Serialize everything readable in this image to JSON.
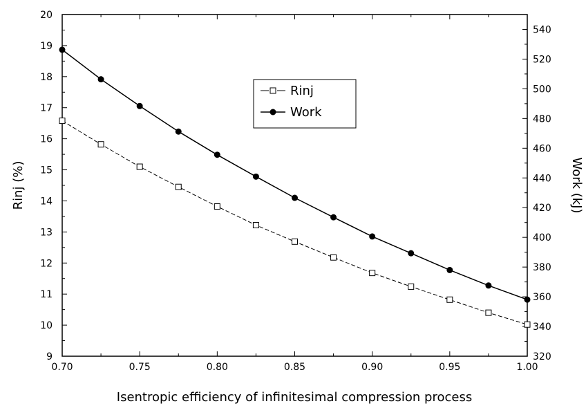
{
  "chart_data": {
    "type": "line",
    "xlabel": "Isentropic efficiency of infinitesimal compression process",
    "ylabel_left": "Rinj (%)",
    "ylabel_right": "Work (kJ)",
    "xlim": [
      0.7,
      1.0
    ],
    "ylim_left": [
      9,
      20
    ],
    "ylim_right": [
      320,
      550
    ],
    "x_ticks": [
      "0.70",
      "0.75",
      "0.80",
      "0.85",
      "0.90",
      "0.95",
      "1.00"
    ],
    "y_left_ticks": [
      "9",
      "10",
      "11",
      "12",
      "13",
      "14",
      "15",
      "16",
      "17",
      "18",
      "19",
      "20"
    ],
    "y_right_ticks": [
      "320",
      "340",
      "360",
      "380",
      "400",
      "420",
      "440",
      "460",
      "480",
      "500",
      "520",
      "540"
    ],
    "x": [
      0.7,
      0.725,
      0.75,
      0.775,
      0.8,
      0.825,
      0.85,
      0.875,
      0.9,
      0.925,
      0.95,
      0.975,
      1.0
    ],
    "series": [
      {
        "name": "Rinj",
        "axis": "left",
        "marker": "open-square",
        "line_style": "dashed",
        "values": [
          16.58,
          15.82,
          15.1,
          14.45,
          13.82,
          13.22,
          12.69,
          12.18,
          11.68,
          11.24,
          10.82,
          10.4,
          10.02
        ]
      },
      {
        "name": "Work",
        "axis": "right",
        "marker": "filled-circle",
        "line_style": "solid",
        "values": [
          526.3,
          506.4,
          488.4,
          471.2,
          455.6,
          440.9,
          426.6,
          413.5,
          400.6,
          389.3,
          378.0,
          367.6,
          358.1
        ]
      }
    ],
    "legend": {
      "position": "upper-center",
      "entries": [
        "Rinj",
        "Work"
      ]
    },
    "grid": false
  }
}
